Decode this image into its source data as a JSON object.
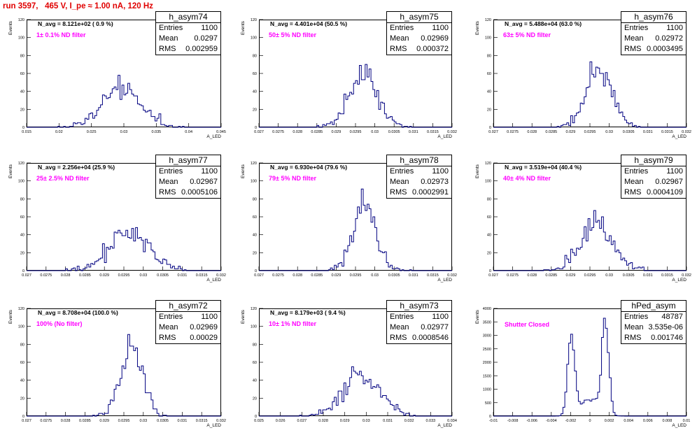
{
  "page_title": "run 3597,   465 V, I_pe ≈ 1.00 nA, 120 Hz",
  "colors": {
    "title": "#e00000",
    "filter_label": "#ff00ff",
    "histogram": "#000080"
  },
  "chart_data": [
    {
      "type": "histogram",
      "name": "h_asym74",
      "n_avg_label": "N_avg = 8.121e+02 ( 0.9 %)",
      "filter_label": "1± 0.1% ND filter",
      "stats": {
        "Entries": "1100",
        "Mean": "0.0297",
        "RMS": "0.002959"
      },
      "xlabel": "A_LED",
      "ylabel": "Events",
      "xlim": [
        0.015,
        0.045
      ],
      "ylim": [
        0,
        120
      ],
      "xticks": [
        0.015,
        0.02,
        0.025,
        0.03,
        0.035,
        0.04,
        0.045
      ],
      "yticks": [
        0,
        20,
        40,
        60,
        80,
        100,
        120
      ],
      "mean": 0.0297,
      "rms": 0.002959,
      "entries": 1100,
      "nbins": 100
    },
    {
      "type": "histogram",
      "name": "h_asym75",
      "n_avg_label": "N_avg = 4.401e+04 (50.5 %)",
      "filter_label": "50± 5% ND filter",
      "stats": {
        "Entries": "1100",
        "Mean": "0.02969",
        "RMS": "0.000372"
      },
      "xlabel": "A_LED",
      "ylabel": "Events",
      "xlim": [
        0.027,
        0.032
      ],
      "ylim": [
        0,
        120
      ],
      "xticks": [
        0.027,
        0.0275,
        0.028,
        0.0285,
        0.029,
        0.0295,
        0.03,
        0.0305,
        0.031,
        0.0315,
        0.032
      ],
      "yticks": [
        0,
        20,
        40,
        60,
        80,
        100,
        120
      ],
      "mean": 0.02969,
      "rms": 0.000372,
      "entries": 1100,
      "nbins": 100
    },
    {
      "type": "histogram",
      "name": "h_asym76",
      "n_avg_label": "N_avg = 5.488e+04 (63.0 %)",
      "filter_label": "63± 5% ND filter",
      "stats": {
        "Entries": "1100",
        "Mean": "0.02972",
        "RMS": "0.0003495"
      },
      "xlabel": "A_LED",
      "ylabel": "Events",
      "xlim": [
        0.027,
        0.032
      ],
      "ylim": [
        0,
        120
      ],
      "xticks": [
        0.027,
        0.0275,
        0.028,
        0.0285,
        0.029,
        0.0295,
        0.03,
        0.0305,
        0.031,
        0.0315,
        0.032
      ],
      "yticks": [
        0,
        20,
        40,
        60,
        80,
        100,
        120
      ],
      "mean": 0.02972,
      "rms": 0.0003495,
      "entries": 1100,
      "nbins": 100
    },
    {
      "type": "histogram",
      "name": "h_asym77",
      "n_avg_label": "N_avg = 2.256e+04 (25.9 %)",
      "filter_label": "25± 2.5% ND filter",
      "stats": {
        "Entries": "1100",
        "Mean": "0.02967",
        "RMS": "0.0005106"
      },
      "xlabel": "A_LED",
      "ylabel": "Events",
      "xlim": [
        0.027,
        0.032
      ],
      "ylim": [
        0,
        120
      ],
      "xticks": [
        0.027,
        0.0275,
        0.028,
        0.0285,
        0.029,
        0.0295,
        0.03,
        0.0305,
        0.031,
        0.0315,
        0.032
      ],
      "yticks": [
        0,
        20,
        40,
        60,
        80,
        100,
        120
      ],
      "mean": 0.02967,
      "rms": 0.0005106,
      "entries": 1100,
      "nbins": 100
    },
    {
      "type": "histogram",
      "name": "h_asym78",
      "n_avg_label": "N_avg = 6.930e+04 (79.6 %)",
      "filter_label": "79± 5% ND filter",
      "stats": {
        "Entries": "1100",
        "Mean": "0.02973",
        "RMS": "0.0002991"
      },
      "xlabel": "A_LED",
      "ylabel": "Events",
      "xlim": [
        0.027,
        0.032
      ],
      "ylim": [
        0,
        120
      ],
      "xticks": [
        0.027,
        0.0275,
        0.028,
        0.0285,
        0.029,
        0.0295,
        0.03,
        0.0305,
        0.031,
        0.0315,
        0.032
      ],
      "yticks": [
        0,
        20,
        40,
        60,
        80,
        100,
        120
      ],
      "mean": 0.02973,
      "rms": 0.0002991,
      "entries": 1100,
      "nbins": 100
    },
    {
      "type": "histogram",
      "name": "h_asym79",
      "n_avg_label": "N_avg = 3.519e+04 (40.4 %)",
      "filter_label": "40± 4% ND filter",
      "stats": {
        "Entries": "1100",
        "Mean": "0.02967",
        "RMS": "0.0004109"
      },
      "xlabel": "A_LED",
      "ylabel": "Events",
      "xlim": [
        0.027,
        0.032
      ],
      "ylim": [
        0,
        120
      ],
      "xticks": [
        0.027,
        0.0275,
        0.028,
        0.0285,
        0.029,
        0.0295,
        0.03,
        0.0305,
        0.031,
        0.0315,
        0.032
      ],
      "yticks": [
        0,
        20,
        40,
        60,
        80,
        100,
        120
      ],
      "mean": 0.02967,
      "rms": 0.0004109,
      "entries": 1100,
      "nbins": 100
    },
    {
      "type": "histogram",
      "name": "h_asym72",
      "n_avg_label": "N_avg = 8.708e+04 (100.0 %)",
      "filter_label": "100% (No filter)",
      "stats": {
        "Entries": "1100",
        "Mean": "0.02969",
        "RMS": "0.00029"
      },
      "xlabel": "A_LED",
      "ylabel": "Events",
      "xlim": [
        0.027,
        0.032
      ],
      "ylim": [
        0,
        120
      ],
      "xticks": [
        0.027,
        0.0275,
        0.028,
        0.0285,
        0.029,
        0.0295,
        0.03,
        0.0305,
        0.031,
        0.0315,
        0.032
      ],
      "yticks": [
        0,
        20,
        40,
        60,
        80,
        100,
        120
      ],
      "mean": 0.02969,
      "rms": 0.00029,
      "entries": 1100,
      "nbins": 100
    },
    {
      "type": "histogram",
      "name": "h_asym73",
      "n_avg_label": "N_avg = 8.179e+03 ( 9.4 %)",
      "filter_label": "10± 1% ND filter",
      "stats": {
        "Entries": "1100",
        "Mean": "0.02977",
        "RMS": "0.0008546"
      },
      "xlabel": "A_LED",
      "ylabel": "Events",
      "xlim": [
        0.025,
        0.034
      ],
      "ylim": [
        0,
        120
      ],
      "xticks": [
        0.025,
        0.026,
        0.027,
        0.028,
        0.029,
        0.03,
        0.031,
        0.032,
        0.033,
        0.034
      ],
      "yticks": [
        0,
        20,
        40,
        60,
        80,
        100,
        120
      ],
      "mean": 0.02977,
      "rms": 0.0008546,
      "entries": 1100,
      "nbins": 100
    },
    {
      "type": "histogram",
      "name": "hPed_asym",
      "n_avg_label": "",
      "filter_label": "Shutter Closed",
      "stats": {
        "Entries": "48787",
        "Mean": "3.535e-06",
        "RMS": "0.001746"
      },
      "xlabel": "A_LED",
      "ylabel": "Events",
      "xlim": [
        -0.01,
        0.01
      ],
      "ylim": [
        0,
        4000
      ],
      "xticks": [
        -0.01,
        -0.008,
        -0.006,
        -0.004,
        -0.002,
        0,
        0.002,
        0.004,
        0.006,
        0.008,
        0.01
      ],
      "yticks": [
        0,
        500,
        1000,
        1500,
        2000,
        2500,
        3000,
        3500,
        4000
      ],
      "peaks": [
        {
          "center": -0.00195,
          "peak": 3000
        },
        {
          "center": 0.0016,
          "peak": 3450
        }
      ],
      "entries": 48787,
      "nbins": 100
    }
  ]
}
